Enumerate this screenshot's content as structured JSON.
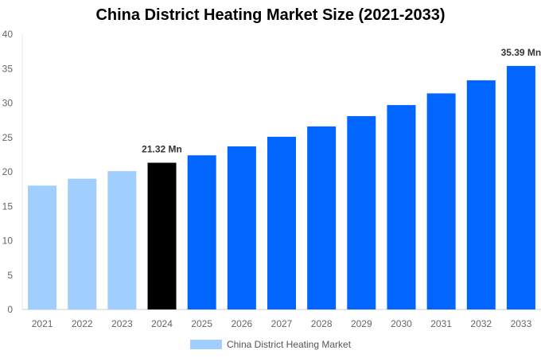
{
  "chart_data": {
    "type": "bar",
    "title": "China District Heating Market Size (2021-2033)",
    "categories": [
      "2021",
      "2022",
      "2023",
      "2024",
      "2025",
      "2026",
      "2027",
      "2028",
      "2029",
      "2030",
      "2031",
      "2032",
      "2033"
    ],
    "series": [
      {
        "name": "China District Heating Market",
        "values": [
          18.0,
          19.0,
          20.1,
          21.32,
          22.4,
          23.7,
          25.1,
          26.6,
          28.1,
          29.7,
          31.4,
          33.3,
          35.39
        ]
      }
    ],
    "data_labels": {
      "2024": "21.32 Mn",
      "2033": "35.39 Mn"
    },
    "ylim": [
      0,
      40
    ],
    "yticks": [
      0,
      5,
      10,
      15,
      20,
      25,
      30,
      35,
      40
    ],
    "xlabel": "",
    "ylabel": "",
    "grid": false,
    "legend_position": "bottom",
    "colors": {
      "historical": "#a0ceff",
      "base_year": "#000000",
      "forecast": "#0066ff"
    }
  }
}
